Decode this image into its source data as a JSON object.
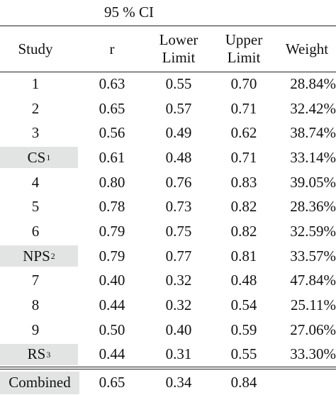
{
  "ci_label": "95 % CI",
  "headers": {
    "study": "Study",
    "r": "r",
    "lower_1": "Lower",
    "lower_2": "Limit",
    "upper_1": "Upper",
    "upper_2": "Limit",
    "weight": "Weight"
  },
  "rows": [
    {
      "study": "1",
      "sup": "",
      "r": "0.63",
      "lower": "0.55",
      "upper": "0.70",
      "weight": "28.84%",
      "kind": "study"
    },
    {
      "study": "2",
      "sup": "",
      "r": "0.65",
      "lower": "0.57",
      "upper": "0.71",
      "weight": "32.42%",
      "kind": "study"
    },
    {
      "study": "3",
      "sup": "",
      "r": "0.56",
      "lower": "0.49",
      "upper": "0.62",
      "weight": "38.74%",
      "kind": "study"
    },
    {
      "study": "CS",
      "sup": "1",
      "r": "0.61",
      "lower": "0.48",
      "upper": "0.71",
      "weight": "33.14%",
      "kind": "sub"
    },
    {
      "study": "4",
      "sup": "",
      "r": "0.80",
      "lower": "0.76",
      "upper": "0.83",
      "weight": "39.05%",
      "kind": "study"
    },
    {
      "study": "5",
      "sup": "",
      "r": "0.78",
      "lower": "0.73",
      "upper": "0.82",
      "weight": "28.36%",
      "kind": "study"
    },
    {
      "study": "6",
      "sup": "",
      "r": "0.79",
      "lower": "0.75",
      "upper": "0.82",
      "weight": "32.59%",
      "kind": "study"
    },
    {
      "study": "NPS",
      "sup": "2",
      "r": "0.79",
      "lower": "0.77",
      "upper": "0.81",
      "weight": "33.57%",
      "kind": "sub"
    },
    {
      "study": "7",
      "sup": "",
      "r": "0.40",
      "lower": "0.32",
      "upper": "0.48",
      "weight": "47.84%",
      "kind": "study"
    },
    {
      "study": "8",
      "sup": "",
      "r": "0.44",
      "lower": "0.32",
      "upper": "0.54",
      "weight": "25.11%",
      "kind": "study"
    },
    {
      "study": "9",
      "sup": "",
      "r": "0.50",
      "lower": "0.40",
      "upper": "0.59",
      "weight": "27.06%",
      "kind": "study"
    },
    {
      "study": "RS",
      "sup": "3",
      "r": "0.44",
      "lower": "0.31",
      "upper": "0.55",
      "weight": "33.30%",
      "kind": "sub"
    },
    {
      "study": "Combined",
      "sup": "",
      "r": "0.65",
      "lower": "0.34",
      "upper": "0.84",
      "weight": "",
      "kind": "combined"
    }
  ],
  "colors": {
    "text": "#111111",
    "rule": "#222222",
    "subgroup_shade": "#e2e4e4",
    "background": "#ffffff"
  }
}
